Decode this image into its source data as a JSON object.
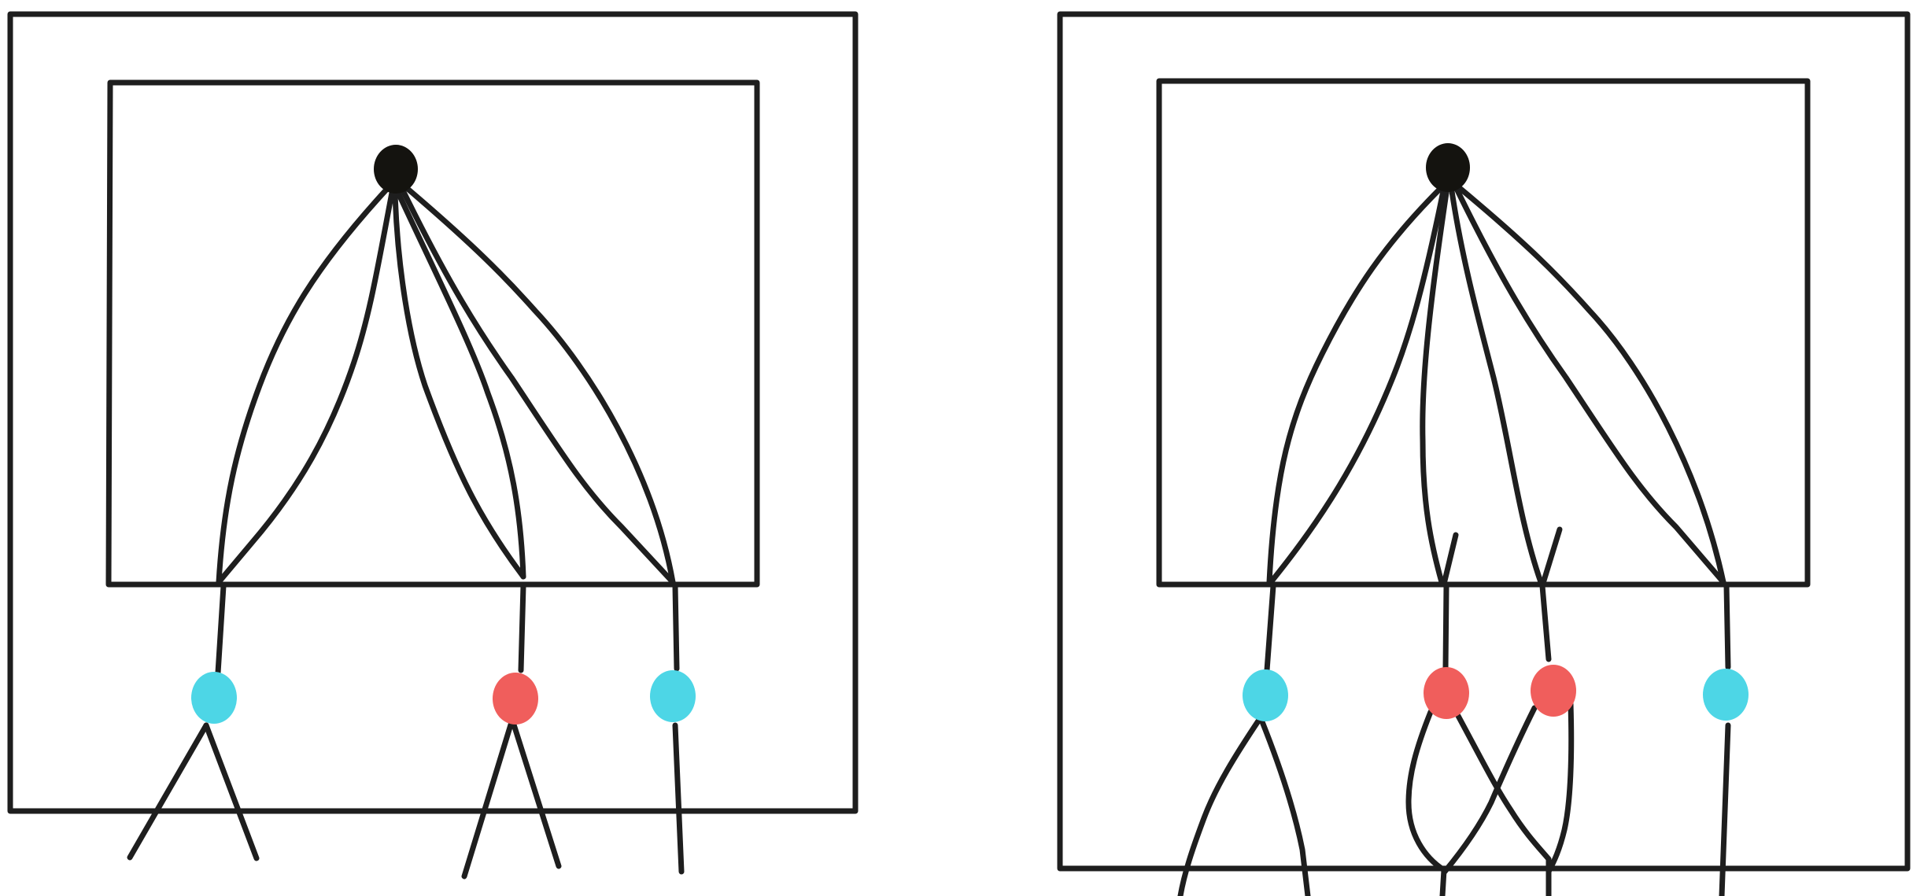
{
  "colors": {
    "stroke": "#1e1e1e",
    "root": "#14130f",
    "cyan": "#4dd6e6",
    "red": "#f05e5c",
    "background": "#ffffff"
  },
  "diagrams": [
    {
      "id": "left",
      "root": "black-dot",
      "nodes": [
        "cyan",
        "red",
        "cyan"
      ],
      "connections_from_root_per_node": [
        2,
        2,
        2
      ],
      "branches_below_per_node": [
        2,
        2,
        1
      ]
    },
    {
      "id": "right",
      "root": "black-dot",
      "nodes": [
        "cyan",
        "red",
        "red",
        "cyan"
      ],
      "connections_from_root_per_node": [
        2,
        1,
        1,
        2
      ],
      "branches_below_per_node": [
        2,
        2,
        1,
        1
      ]
    }
  ]
}
